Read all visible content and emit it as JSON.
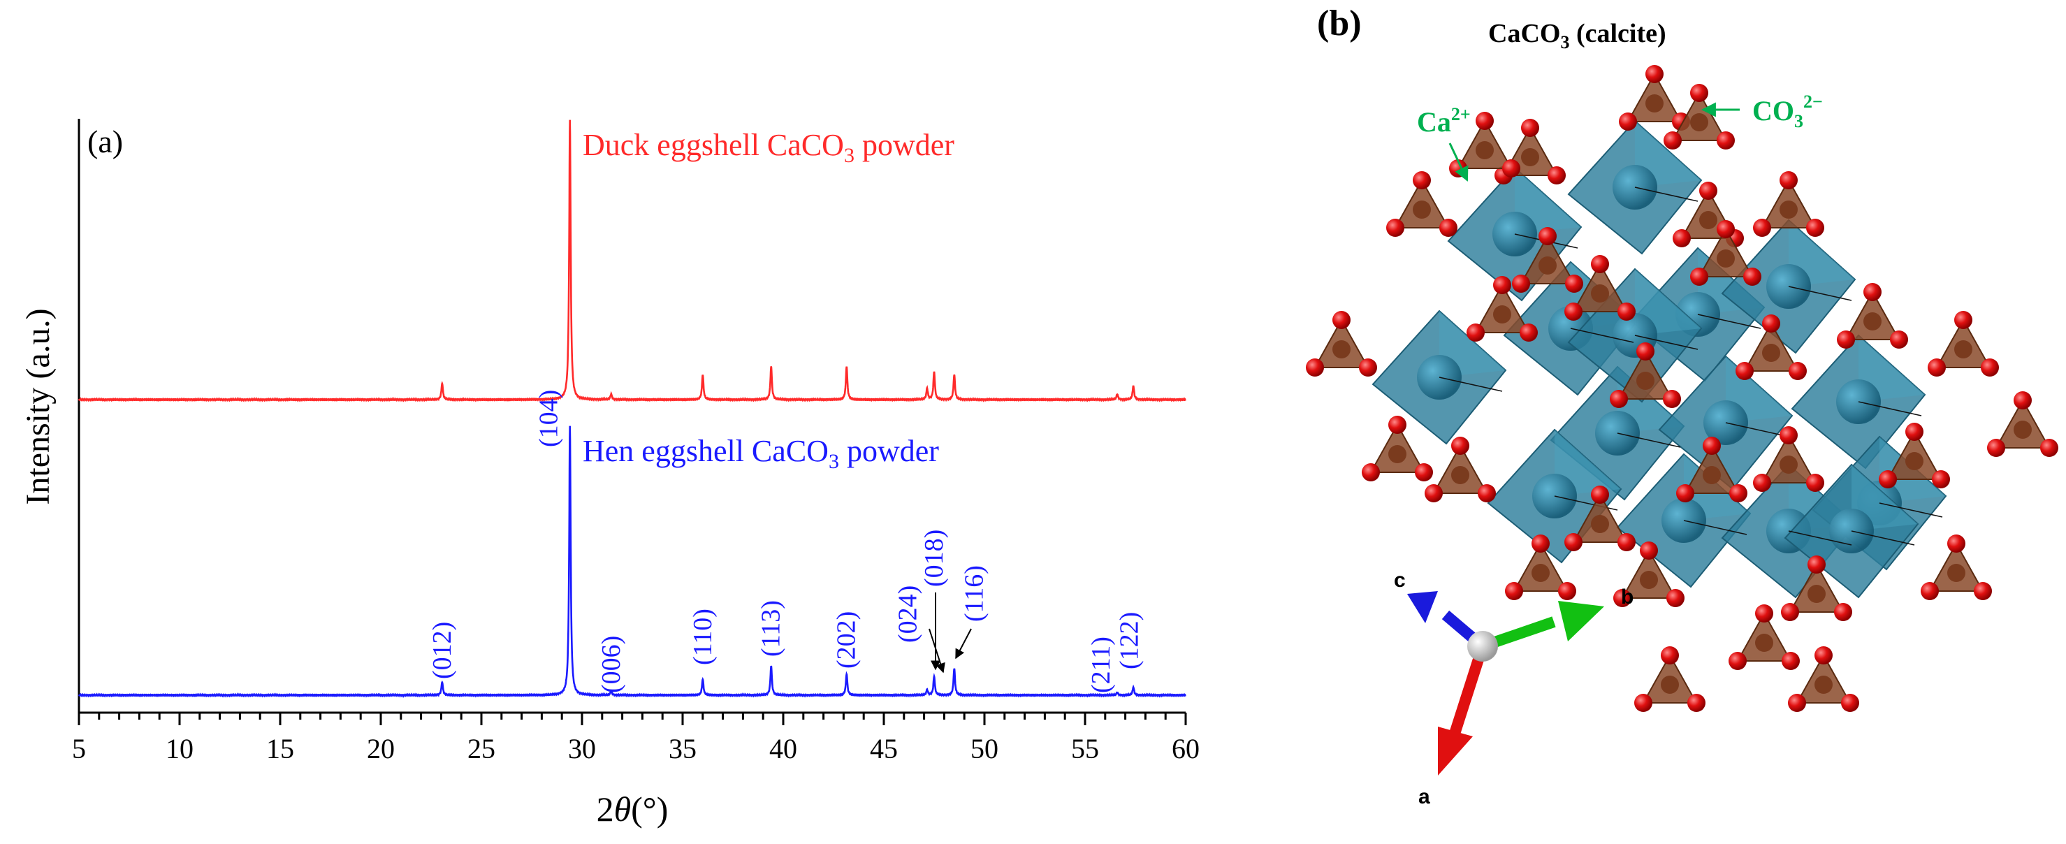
{
  "chart_data": {
    "type": "line",
    "panel_label": "(a)",
    "xlabel_prefix": "2",
    "xlabel_theta": "θ",
    "xlabel_unit": "(°)",
    "ylabel": "Intensity (a.u.)",
    "xlim": [
      5,
      60
    ],
    "xticks": [
      "5",
      "10",
      "15",
      "20",
      "25",
      "30",
      "35",
      "40",
      "45",
      "50",
      "55",
      "60"
    ],
    "peak_positions_2theta": [
      23.05,
      29.4,
      31.45,
      36.0,
      39.4,
      43.15,
      47.15,
      47.5,
      48.5,
      56.6,
      57.4
    ],
    "series": [
      {
        "name_prefix": "Duck eggshell CaCO",
        "name_sub": "3",
        "name_suffix": " powder",
        "color": "#ff2a2a",
        "relative_intensities": [
          0.06,
          1.0,
          0.02,
          0.09,
          0.12,
          0.12,
          0.04,
          0.1,
          0.09,
          0.02,
          0.05
        ]
      },
      {
        "name_prefix": "Hen eggshell CaCO",
        "name_sub": "3",
        "name_suffix": " powder",
        "color": "#1a1aff",
        "relative_intensities": [
          0.05,
          1.0,
          0.015,
          0.06,
          0.11,
          0.08,
          0.02,
          0.07,
          0.1,
          0.01,
          0.03
        ]
      }
    ],
    "miller_labels": [
      {
        "text": "(012)",
        "x": 23.05
      },
      {
        "text": "(104)",
        "x": 28.35
      },
      {
        "text": "(006)",
        "x": 31.45
      },
      {
        "text": "(110)",
        "x": 36.0
      },
      {
        "text": "(113)",
        "x": 39.4
      },
      {
        "text": "(202)",
        "x": 43.15
      },
      {
        "text": "(024)",
        "x": 46.2
      },
      {
        "text": "(018)",
        "x": 47.5
      },
      {
        "text": "(116)",
        "x": 49.5
      },
      {
        "text": "(211)",
        "x": 55.8
      },
      {
        "text": "(122)",
        "x": 57.2
      }
    ]
  },
  "structure": {
    "panel_label": "(b)",
    "title_prefix": "CaCO",
    "title_sub": "3",
    "title_suffix": " (calcite)",
    "ca_label_base": "Ca",
    "ca_label_sup": "2+",
    "co3_label_base": "CO",
    "co3_label_sub": "3",
    "co3_label_sup": "2−",
    "axis_a": "a",
    "axis_b": "b",
    "axis_c": "c",
    "colors": {
      "octahedron": "#2e7f9c",
      "ca_atom": "#1f6f8f",
      "oxygen": "#e01010",
      "carbon": "#7a3b1e",
      "label_green": "#00b050"
    }
  }
}
